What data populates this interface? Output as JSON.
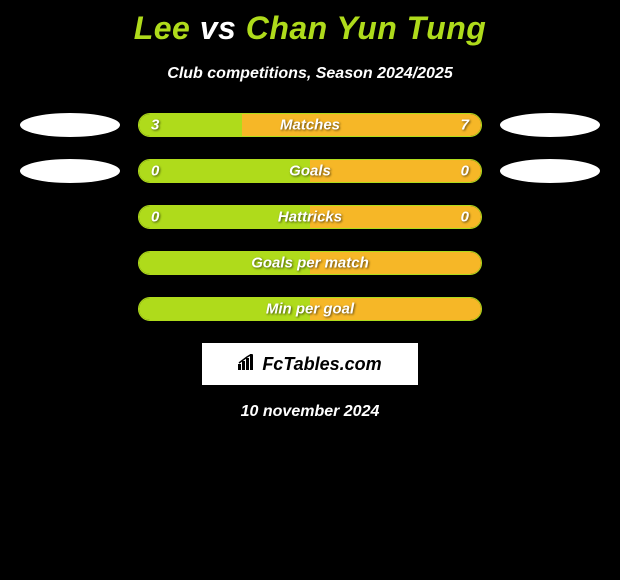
{
  "title": {
    "player1": "Lee",
    "vs": "vs",
    "player2": "Chan Yun Tung"
  },
  "subtitle": "Club competitions, Season 2024/2025",
  "colors": {
    "background": "#000000",
    "left_bar": "#afdb1b",
    "right_bar": "#f6b727",
    "border": "#afdb1b",
    "text": "#ffffff",
    "accent": "#afdb1b"
  },
  "rows": [
    {
      "label": "Matches",
      "left_val": "3",
      "right_val": "7",
      "left_pct": 30,
      "right_pct": 70,
      "show_avatar": true
    },
    {
      "label": "Goals",
      "left_val": "0",
      "right_val": "0",
      "left_pct": 50,
      "right_pct": 50,
      "show_avatar": true
    },
    {
      "label": "Hattricks",
      "left_val": "0",
      "right_val": "0",
      "left_pct": 50,
      "right_pct": 50,
      "show_avatar": false
    },
    {
      "label": "Goals per match",
      "left_val": "",
      "right_val": "",
      "left_pct": 50,
      "right_pct": 50,
      "show_avatar": false
    },
    {
      "label": "Min per goal",
      "left_val": "",
      "right_val": "",
      "left_pct": 50,
      "right_pct": 50,
      "show_avatar": false
    }
  ],
  "logo": "FcTables.com",
  "date": "10 november 2024"
}
